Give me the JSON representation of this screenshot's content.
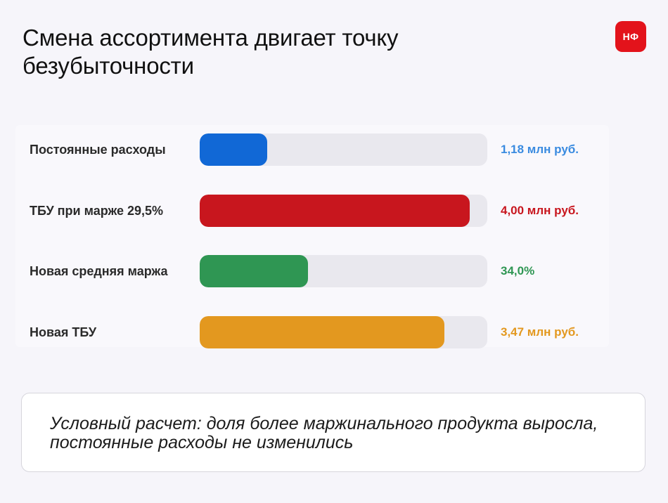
{
  "header": {
    "title": "Смена ассортимента двигает точку безубыточности",
    "logo_text": "НФ"
  },
  "chart_data": {
    "type": "bar",
    "orientation": "horizontal",
    "grid": false,
    "rows": [
      {
        "label": "Постоянные расходы",
        "value_text": "1,18 млн руб.",
        "fill_fraction": 0.235,
        "color": "#1168d6",
        "text_color": "#3a8be0"
      },
      {
        "label": "ТБУ при марже 29,5%",
        "value_text": "4,00 млн руб.",
        "fill_fraction": 0.94,
        "color": "#c8161e",
        "text_color": "#c8161e"
      },
      {
        "label": "Новая средняя маржа",
        "value_text": "34,0%",
        "fill_fraction": 0.376,
        "color": "#2f9653",
        "text_color": "#2f9653"
      },
      {
        "label": "Новая ТБУ",
        "value_text": "3,47 млн руб.",
        "fill_fraction": 0.852,
        "color": "#e3981f",
        "text_color": "#e3981f"
      }
    ]
  },
  "note": {
    "text": "Условный расчет: доля более маржинального продукта выросла, постоянные расходы не изменились"
  },
  "colors": {
    "background": "#f6f5fa",
    "track": "#e9e8ee",
    "brand": "#e3131b"
  }
}
